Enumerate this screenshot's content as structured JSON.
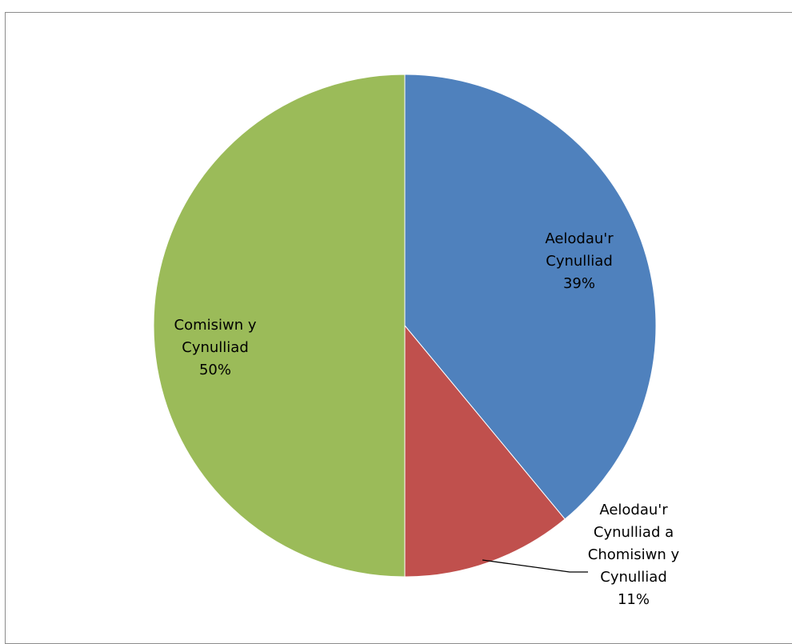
{
  "chart_data": {
    "type": "pie",
    "title": "",
    "categories": [
      "Aelodau'r Cynulliad",
      "Aelodau'r Cynulliad a Chomisiwn y Cynulliad",
      "Comisiwn y Cynulliad"
    ],
    "values": [
      39,
      11,
      50
    ],
    "unit": "%",
    "colors": [
      "#4f81bd",
      "#c0504d",
      "#9bbb59"
    ],
    "legend": "none",
    "data_labels": [
      {
        "lines": [
          "Aelodau'r",
          "Cynulliad"
        ],
        "percent": "39%"
      },
      {
        "lines": [
          "Aelodau'r",
          "Cynulliad a",
          "Chomisiwn y",
          "Cynulliad"
        ],
        "percent": "11%"
      },
      {
        "lines": [
          "Comisiwn y",
          "Cynulliad"
        ],
        "percent": "50%"
      }
    ]
  }
}
